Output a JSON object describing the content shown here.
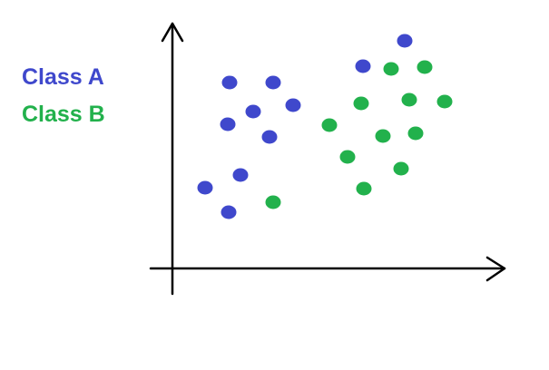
{
  "chart_data": {
    "type": "scatter",
    "title": "",
    "xlabel": "",
    "ylabel": "",
    "axes": {
      "ticks": false,
      "grid": false,
      "arrows": true
    },
    "legend": {
      "placement": "top-left",
      "style": "colored-text"
    },
    "xlim": [
      0,
      364
    ],
    "ylim": [
      0,
      270
    ],
    "series": [
      {
        "name": "Class A",
        "color": "#3f48cc",
        "points": [
          {
            "x": 63,
            "y": 205
          },
          {
            "x": 111,
            "y": 205
          },
          {
            "x": 89,
            "y": 173
          },
          {
            "x": 133,
            "y": 180
          },
          {
            "x": 61,
            "y": 159
          },
          {
            "x": 107,
            "y": 145
          },
          {
            "x": 75,
            "y": 103
          },
          {
            "x": 36,
            "y": 89
          },
          {
            "x": 62,
            "y": 62
          },
          {
            "x": 210,
            "y": 223
          },
          {
            "x": 256,
            "y": 251
          }
        ]
      },
      {
        "name": "Class B",
        "color": "#22b14c",
        "points": [
          {
            "x": 241,
            "y": 220
          },
          {
            "x": 278,
            "y": 222
          },
          {
            "x": 208,
            "y": 182
          },
          {
            "x": 261,
            "y": 186
          },
          {
            "x": 300,
            "y": 184
          },
          {
            "x": 173,
            "y": 158
          },
          {
            "x": 232,
            "y": 146
          },
          {
            "x": 268,
            "y": 149
          },
          {
            "x": 193,
            "y": 123
          },
          {
            "x": 252,
            "y": 110
          },
          {
            "x": 211,
            "y": 88
          },
          {
            "x": 111,
            "y": 73
          }
        ]
      }
    ]
  }
}
